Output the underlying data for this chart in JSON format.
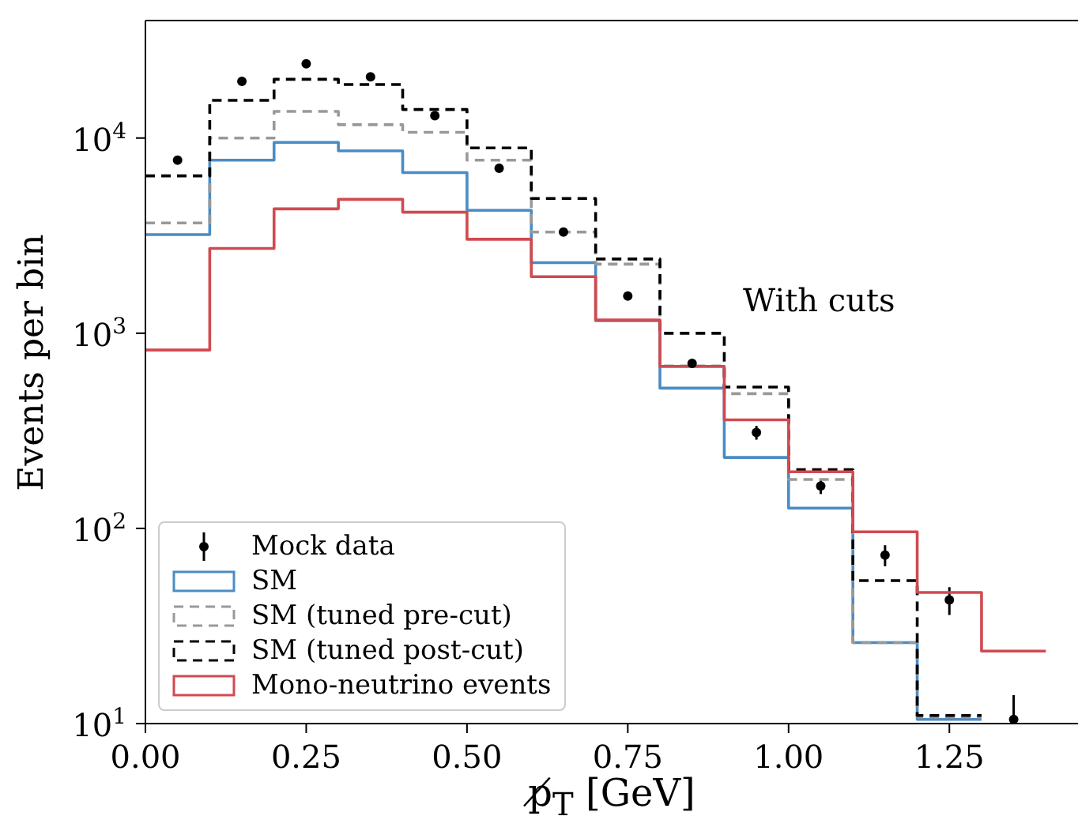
{
  "chart_data": {
    "type": "histogram",
    "xlabel": "p̸$_{T}$ [GeV]",
    "ylabel": "Events per bin",
    "log": "y",
    "bins": [
      0,
      0.1,
      0.2,
      0.3,
      0.4,
      0.5,
      0.6,
      0.7,
      0.8,
      0.9,
      1.0,
      1.1,
      1.2,
      1.3,
      1.4
    ],
    "xlim": [
      0,
      1.45
    ],
    "ylim": [
      10,
      40000
    ],
    "xticks": [
      {
        "value": 0,
        "label": "0.00"
      },
      {
        "value": 0.25,
        "label": "0.25"
      },
      {
        "value": 0.5,
        "label": "0.50"
      },
      {
        "value": 0.75,
        "label": "0.75"
      },
      {
        "value": 1.0,
        "label": "1.00"
      },
      {
        "value": 1.25,
        "label": "1.25"
      }
    ],
    "yticks": [
      {
        "value": 10,
        "label": "10$^{1}$"
      },
      {
        "value": 100,
        "label": "10$^{2}$"
      },
      {
        "value": 1000,
        "label": "10$^{3}$"
      },
      {
        "value": 10000,
        "label": "10$^{4}$"
      }
    ],
    "grid": false,
    "legend": "bottom left",
    "annotations": [
      "With cuts"
    ],
    "series": [
      {
        "name": "Mock data",
        "type": "scatter",
        "color": "#000000",
        "marker": "circle",
        "x": [
          0.05,
          0.15,
          0.25,
          0.35,
          0.45,
          0.55,
          0.65,
          0.75,
          0.85,
          0.95,
          1.05,
          1.15,
          1.25,
          1.35
        ],
        "values": [
          7700,
          19500,
          24000,
          20600,
          13000,
          7000,
          3300,
          1550,
          700,
          310,
          165,
          73,
          43,
          10.5
        ],
        "errors": [
          null,
          null,
          null,
          null,
          null,
          null,
          null,
          null,
          30,
          25,
          15,
          9,
          7,
          [
            10,
            14
          ]
        ]
      },
      {
        "name": "SM",
        "color": "#4a8cc4",
        "bins": [
          0,
          0.1,
          0.2,
          0.3,
          0.4,
          0.5,
          0.6,
          0.7,
          0.8,
          0.9,
          1.0,
          1.1,
          1.2,
          1.3
        ],
        "line_style": "solid",
        "values": [
          3200,
          7700,
          9500,
          8600,
          6650,
          4260,
          2300,
          1160,
          523,
          231,
          127,
          26,
          10.5
        ]
      },
      {
        "name": "SM (tuned pre-cut)",
        "color": "#999999",
        "bins": [
          0,
          0.1,
          0.2,
          0.3,
          0.4,
          0.5,
          0.6,
          0.7,
          0.8,
          0.9,
          1.0,
          1.1,
          1.2,
          1.3
        ],
        "line_style": "dashed",
        "values": [
          3670,
          10000,
          13700,
          11700,
          10700,
          7700,
          3300,
          2260,
          680,
          490,
          178,
          26,
          10.8
        ]
      },
      {
        "name": "SM (tuned post-cut)",
        "color": "#000000",
        "bins": [
          0,
          0.1,
          0.2,
          0.3,
          0.4,
          0.5,
          0.6,
          0.7,
          0.8,
          0.9,
          1.0,
          1.1,
          1.2,
          1.3
        ],
        "line_style": "dashed",
        "values": [
          6400,
          15600,
          20000,
          18800,
          14000,
          8900,
          4900,
          2400,
          1000,
          530,
          200,
          54,
          11
        ]
      },
      {
        "name": "Mono-neutrino events",
        "color": "#d04a50",
        "line_style": "solid",
        "values": [
          820,
          2720,
          4340,
          4850,
          4170,
          3030,
          1950,
          1170,
          676,
          360,
          195,
          96,
          47,
          23.5
        ]
      }
    ]
  }
}
